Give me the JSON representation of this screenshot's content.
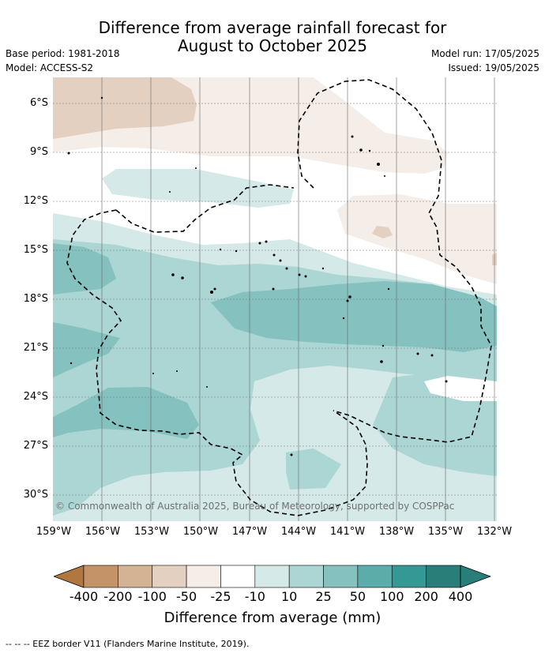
{
  "title_line1": "Difference from average rainfall forecast for",
  "title_line2": "August to October 2025",
  "base_period": "Base period: 1981-2018",
  "model": "Model: ACCESS-S2",
  "model_run": "Model run: 17/05/2025",
  "issued": "Issued: 19/05/2025",
  "lat_labels": [
    "6°S",
    "9°S",
    "12°S",
    "15°S",
    "18°S",
    "21°S",
    "24°S",
    "27°S",
    "30°S"
  ],
  "lon_labels": [
    "159°W",
    "156°W",
    "153°W",
    "150°W",
    "147°W",
    "144°W",
    "141°W",
    "138°W",
    "135°W",
    "132°W"
  ],
  "copyright": "© Commonwealth of Australia 2025, Bureau of Meteorology, supported by COSPPac",
  "colorbar": {
    "ticks": [
      "-400",
      "-200",
      "-100",
      "-50",
      "-25",
      "-10",
      "10",
      "25",
      "50",
      "100",
      "200",
      "400"
    ],
    "colors": [
      "#b07840",
      "#c49468",
      "#d4b294",
      "#e3d0c0",
      "#f5ede8",
      "#ffffff",
      "#d4e9e8",
      "#acd6d4",
      "#84c1bf",
      "#5cadaa",
      "#349995",
      "#2a7e7a"
    ],
    "label": "Difference from average (mm)"
  },
  "footnote": "-- -- -- EEZ border V11 (Flanders Marine Institute, 2019)."
}
